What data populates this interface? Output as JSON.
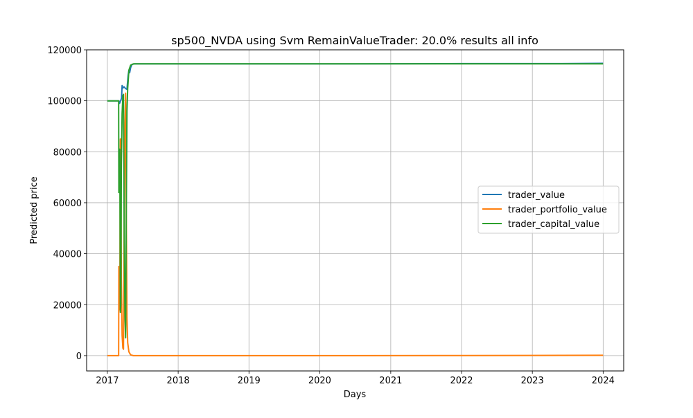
{
  "chart_data": {
    "type": "line",
    "title": "sp500_NVDA using Svm RemainValueTrader: 20.0% results all info",
    "xlabel": "Days",
    "ylabel": "Predicted price",
    "xlim": [
      "2016-09-16",
      "2024-04-16"
    ],
    "ylim": [
      -6000,
      120000
    ],
    "x_ticks": [
      "2017",
      "2018",
      "2019",
      "2020",
      "2021",
      "2022",
      "2023",
      "2024"
    ],
    "y_ticks": [
      0,
      20000,
      40000,
      60000,
      80000,
      100000,
      120000
    ],
    "grid": true,
    "legend_position": "center-right",
    "series": [
      {
        "name": "trader_value",
        "color": "#1f77b4",
        "points": [
          [
            "2017-01-01",
            100000
          ],
          [
            "2017-03-01",
            100000
          ],
          [
            "2017-03-05",
            99000
          ],
          [
            "2017-03-10",
            100000
          ],
          [
            "2017-03-15",
            101000
          ],
          [
            "2017-03-18",
            106000
          ],
          [
            "2017-03-22",
            105000
          ],
          [
            "2017-03-28",
            105500
          ],
          [
            "2017-04-05",
            104800
          ],
          [
            "2017-04-12",
            104500
          ],
          [
            "2017-04-18",
            110000
          ],
          [
            "2017-04-22",
            112000
          ],
          [
            "2017-04-26",
            111000
          ],
          [
            "2017-05-01",
            113000
          ],
          [
            "2017-05-08",
            114300
          ],
          [
            "2017-05-20",
            114500
          ],
          [
            "2017-06-15",
            114500
          ],
          [
            "2018-06-01",
            114500
          ],
          [
            "2020-01-01",
            114500
          ],
          [
            "2022-01-01",
            114600
          ],
          [
            "2023-06-01",
            114600
          ],
          [
            "2024-01-01",
            114700
          ]
        ]
      },
      {
        "name": "trader_portfolio_value",
        "color": "#ff7f0e",
        "points": [
          [
            "2017-01-01",
            0
          ],
          [
            "2017-02-28",
            0
          ],
          [
            "2017-03-01",
            35000
          ],
          [
            "2017-03-03",
            35000
          ],
          [
            "2017-03-06",
            18000
          ],
          [
            "2017-03-09",
            85000
          ],
          [
            "2017-03-11",
            85000
          ],
          [
            "2017-03-14",
            30000
          ],
          [
            "2017-03-18",
            8000
          ],
          [
            "2017-03-22",
            3000
          ],
          [
            "2017-03-25",
            2500
          ],
          [
            "2017-03-29",
            60000
          ],
          [
            "2017-04-02",
            90000
          ],
          [
            "2017-04-05",
            103000
          ],
          [
            "2017-04-08",
            60000
          ],
          [
            "2017-04-12",
            15000
          ],
          [
            "2017-04-16",
            5000
          ],
          [
            "2017-04-22",
            1500
          ],
          [
            "2017-05-01",
            300
          ],
          [
            "2017-05-15",
            0
          ],
          [
            "2018-01-01",
            0
          ],
          [
            "2020-01-01",
            0
          ],
          [
            "2022-01-01",
            50
          ],
          [
            "2023-06-01",
            100
          ],
          [
            "2024-01-01",
            150
          ]
        ]
      },
      {
        "name": "trader_capital_value",
        "color": "#2ca02c",
        "points": [
          [
            "2017-01-01",
            100000
          ],
          [
            "2017-02-28",
            100000
          ],
          [
            "2017-03-01",
            64000
          ],
          [
            "2017-03-03",
            81000
          ],
          [
            "2017-03-06",
            81000
          ],
          [
            "2017-03-09",
            17000
          ],
          [
            "2017-03-11",
            20000
          ],
          [
            "2017-03-14",
            75000
          ],
          [
            "2017-03-18",
            95000
          ],
          [
            "2017-03-22",
            102000
          ],
          [
            "2017-03-25",
            102500
          ],
          [
            "2017-03-29",
            45000
          ],
          [
            "2017-04-02",
            15000
          ],
          [
            "2017-04-05",
            7000
          ],
          [
            "2017-04-08",
            50000
          ],
          [
            "2017-04-12",
            96000
          ],
          [
            "2017-04-16",
            105000
          ],
          [
            "2017-04-22",
            112000
          ],
          [
            "2017-05-01",
            114000
          ],
          [
            "2017-05-15",
            114500
          ],
          [
            "2018-01-01",
            114500
          ],
          [
            "2020-01-01",
            114500
          ],
          [
            "2022-01-01",
            114500
          ],
          [
            "2023-06-01",
            114500
          ],
          [
            "2024-01-01",
            114500
          ]
        ]
      }
    ]
  }
}
